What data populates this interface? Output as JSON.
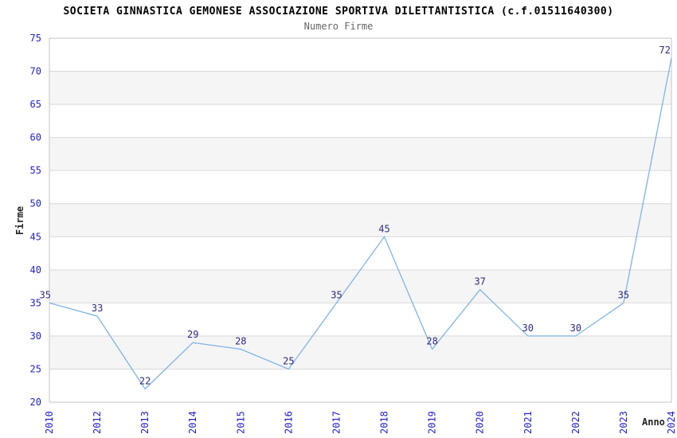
{
  "chart_data": {
    "type": "line",
    "title": "SOCIETA GINNASTICA GEMONESE ASSOCIAZIONE SPORTIVA DILETTANTISTICA (c.f.01511640300)",
    "subtitle": "Numero Firme",
    "xlabel": "Anno",
    "ylabel": "Firme",
    "categories": [
      "2010",
      "2012",
      "2013",
      "2014",
      "2015",
      "2016",
      "2017",
      "2018",
      "2019",
      "2020",
      "2021",
      "2022",
      "2023",
      "2024"
    ],
    "values": [
      35,
      33,
      22,
      29,
      28,
      25,
      35,
      45,
      28,
      37,
      30,
      30,
      35,
      72
    ],
    "ylim": [
      20,
      75
    ],
    "ytick_step": 5,
    "grid": "horizontal",
    "legend": "none",
    "colors": {
      "line": "#7eb4e8",
      "tick_label": "#2222cc",
      "data_label": "#2b2b85",
      "band": "#f5f5f5",
      "grid": "#d9d9d9",
      "border": "#c6c6c6",
      "title": "#000000",
      "subtitle": "#666666",
      "axis_label": "#222222"
    }
  }
}
